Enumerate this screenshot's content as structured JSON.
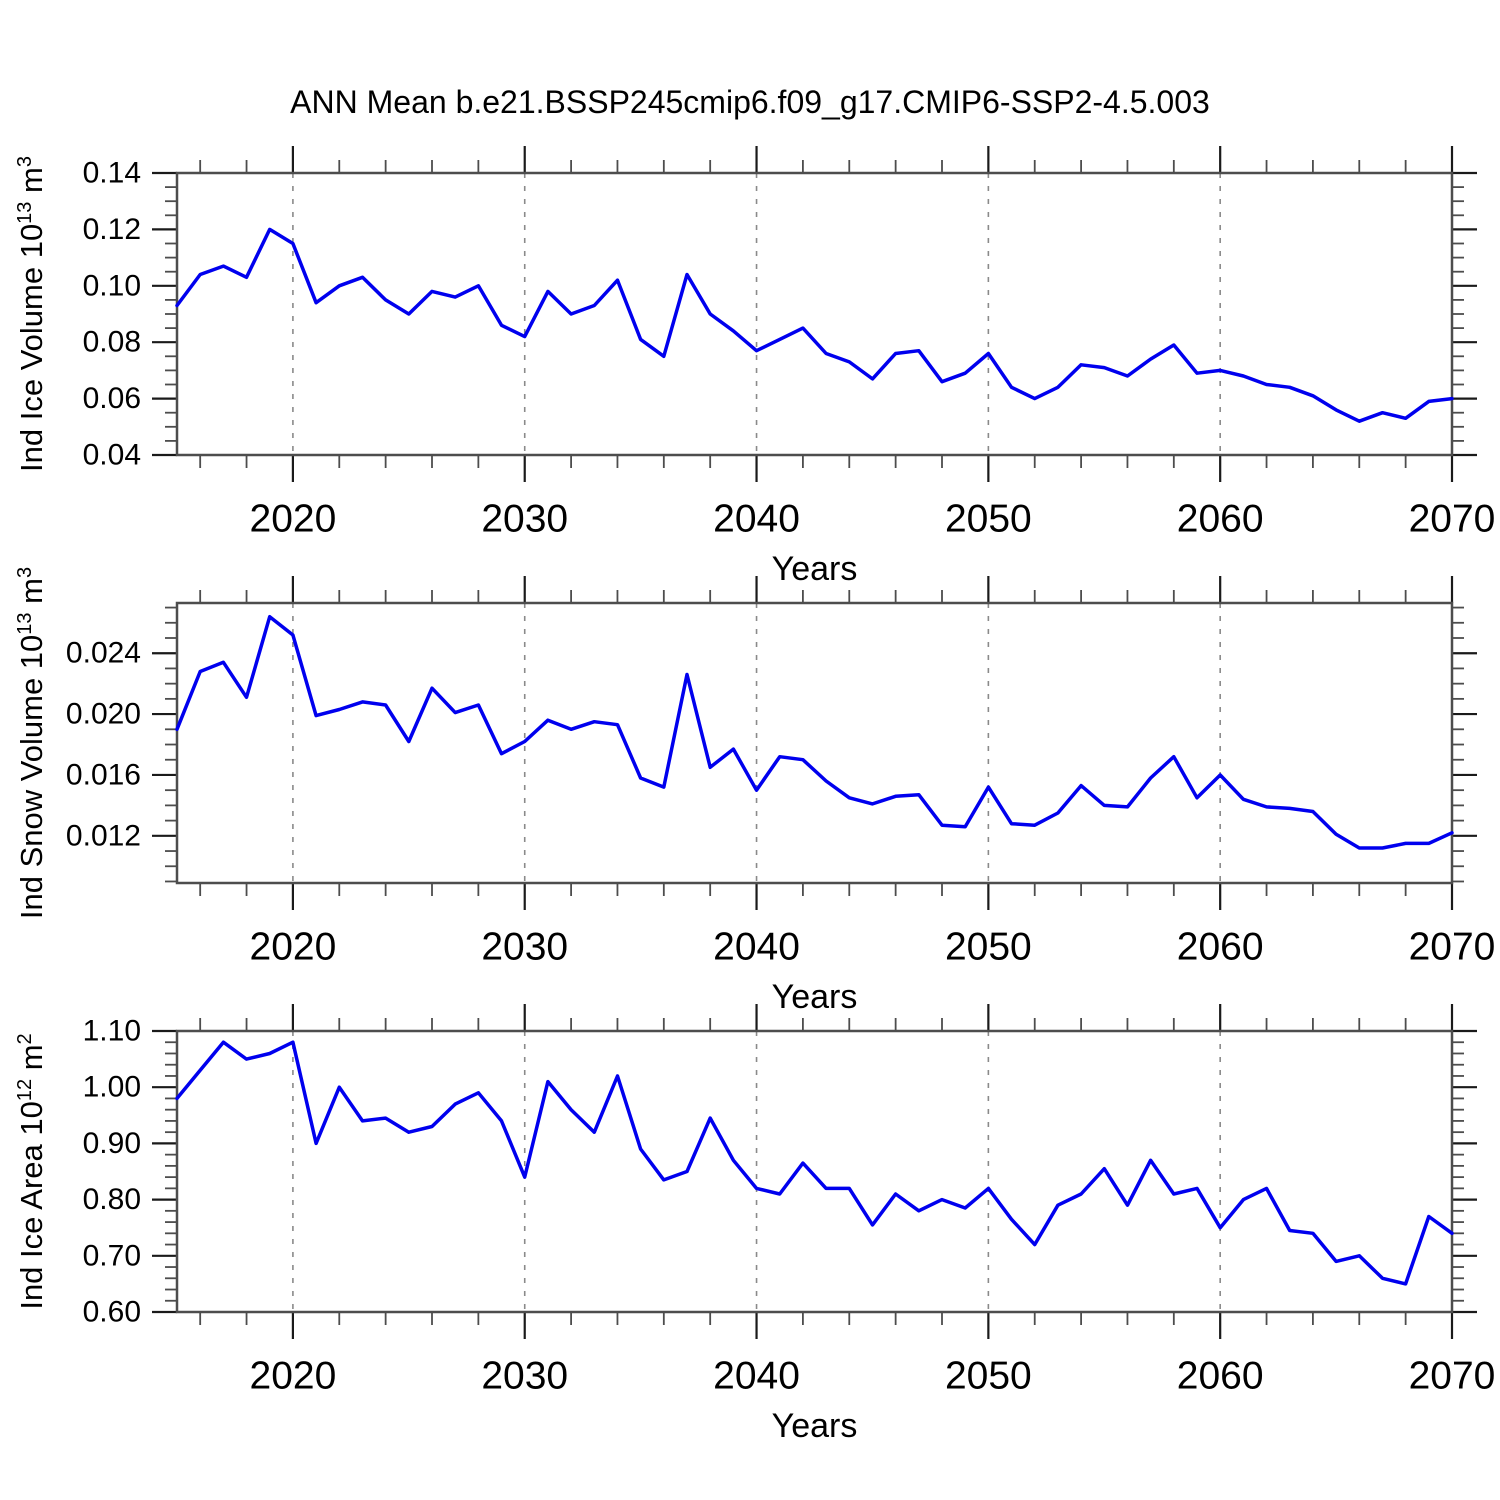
{
  "chart_data": {
    "type": "line",
    "title": "ANN Mean b.e21.BSSP245cmip6.f09_g17.CMIP6-SSP2-4.5.003",
    "xlabel": "Years",
    "line_color": "#0000ee",
    "grid_color": "#8a8a8a",
    "frame_color": "#4d4d4d",
    "tick_color": "#1a1a1a",
    "x": [
      2015,
      2016,
      2017,
      2018,
      2019,
      2020,
      2021,
      2022,
      2023,
      2024,
      2025,
      2026,
      2027,
      2028,
      2029,
      2030,
      2031,
      2032,
      2033,
      2034,
      2035,
      2036,
      2037,
      2038,
      2039,
      2040,
      2041,
      2042,
      2043,
      2044,
      2045,
      2046,
      2047,
      2048,
      2049,
      2050,
      2051,
      2052,
      2053,
      2054,
      2055,
      2056,
      2057,
      2058,
      2059,
      2060,
      2061,
      2062,
      2063,
      2064,
      2065,
      2066,
      2067,
      2068,
      2069,
      2070
    ],
    "xlim": [
      2015,
      2070
    ],
    "xticks_major": [
      2020,
      2030,
      2040,
      2050,
      2060,
      2070
    ],
    "xtick_labels": [
      "2020",
      "2030",
      "2040",
      "2050",
      "2060",
      "2070"
    ],
    "xticks_minor_step": 2,
    "gridlines_x": [
      2020,
      2030,
      2040,
      2050,
      2060
    ],
    "panels": [
      {
        "name": "ice-volume",
        "ylabel_plain": "Ind Ice Volume 10^13 m^3",
        "ylabel_parts": [
          {
            "text": "Ind Ice Volume 10"
          },
          {
            "text": "13",
            "sup": true
          },
          {
            "text": " m"
          },
          {
            "text": "3",
            "sup": true
          }
        ],
        "ylim": [
          0.04,
          0.14
        ],
        "yticks_major": [
          0.04,
          0.06,
          0.08,
          0.1,
          0.12,
          0.14
        ],
        "ytick_labels": [
          "0.04",
          "0.06",
          "0.08",
          "0.10",
          "0.12",
          "0.14"
        ],
        "yticks_minor_step": 0.005,
        "values": [
          0.093,
          0.104,
          0.107,
          0.103,
          0.12,
          0.115,
          0.094,
          0.1,
          0.103,
          0.095,
          0.09,
          0.098,
          0.096,
          0.1,
          0.086,
          0.082,
          0.098,
          0.09,
          0.093,
          0.102,
          0.081,
          0.075,
          0.104,
          0.09,
          0.084,
          0.077,
          0.081,
          0.085,
          0.076,
          0.073,
          0.067,
          0.076,
          0.077,
          0.066,
          0.069,
          0.076,
          0.064,
          0.06,
          0.064,
          0.072,
          0.071,
          0.068,
          0.074,
          0.079,
          0.069,
          0.07,
          0.068,
          0.065,
          0.064,
          0.061,
          0.056,
          0.052,
          0.055,
          0.053,
          0.059,
          0.06
        ]
      },
      {
        "name": "snow-volume",
        "ylabel_plain": "Ind Snow Volume 10^13 m^3",
        "ylabel_parts": [
          {
            "text": "Ind Snow Volume 10"
          },
          {
            "text": "13",
            "sup": true
          },
          {
            "text": " m"
          },
          {
            "text": "3",
            "sup": true
          }
        ],
        "ylim": [
          0.0089,
          0.0273
        ],
        "yticks_major": [
          0.012,
          0.016,
          0.02,
          0.024
        ],
        "ytick_labels": [
          "0.012",
          "0.016",
          "0.020",
          "0.024"
        ],
        "yticks_minor_step": 0.001,
        "values": [
          0.019,
          0.0228,
          0.0234,
          0.0211,
          0.0264,
          0.0252,
          0.0199,
          0.0203,
          0.0208,
          0.0206,
          0.0182,
          0.0217,
          0.0201,
          0.0206,
          0.0174,
          0.0182,
          0.0196,
          0.019,
          0.0195,
          0.0193,
          0.0158,
          0.0152,
          0.0226,
          0.0165,
          0.0177,
          0.015,
          0.0172,
          0.017,
          0.0156,
          0.0145,
          0.0141,
          0.0146,
          0.0147,
          0.0127,
          0.0126,
          0.0152,
          0.0128,
          0.0127,
          0.0135,
          0.0153,
          0.014,
          0.0139,
          0.0158,
          0.0172,
          0.0145,
          0.016,
          0.0144,
          0.0139,
          0.0138,
          0.0136,
          0.0121,
          0.0112,
          0.0112,
          0.0115,
          0.0115,
          0.0122
        ]
      },
      {
        "name": "ice-area",
        "ylabel_plain": "Ind Ice Area 10^12 m^2",
        "ylabel_parts": [
          {
            "text": "Ind Ice Area 10"
          },
          {
            "text": "12",
            "sup": true
          },
          {
            "text": " m"
          },
          {
            "text": "2",
            "sup": true
          }
        ],
        "ylim": [
          0.6,
          1.1
        ],
        "yticks_major": [
          0.6,
          0.7,
          0.8,
          0.9,
          1.0,
          1.1
        ],
        "ytick_labels": [
          "0.60",
          "0.70",
          "0.80",
          "0.90",
          "1.00",
          "1.10"
        ],
        "yticks_minor_step": 0.02,
        "values": [
          0.98,
          1.03,
          1.08,
          1.05,
          1.06,
          1.08,
          0.9,
          1.0,
          0.94,
          0.945,
          0.92,
          0.93,
          0.97,
          0.99,
          0.94,
          0.84,
          1.01,
          0.96,
          0.92,
          1.02,
          0.89,
          0.835,
          0.85,
          0.945,
          0.87,
          0.82,
          0.81,
          0.865,
          0.82,
          0.82,
          0.755,
          0.81,
          0.78,
          0.8,
          0.785,
          0.82,
          0.765,
          0.72,
          0.79,
          0.81,
          0.855,
          0.79,
          0.87,
          0.81,
          0.82,
          0.75,
          0.8,
          0.82,
          0.745,
          0.74,
          0.69,
          0.7,
          0.66,
          0.65,
          0.77,
          0.74
        ]
      }
    ]
  }
}
